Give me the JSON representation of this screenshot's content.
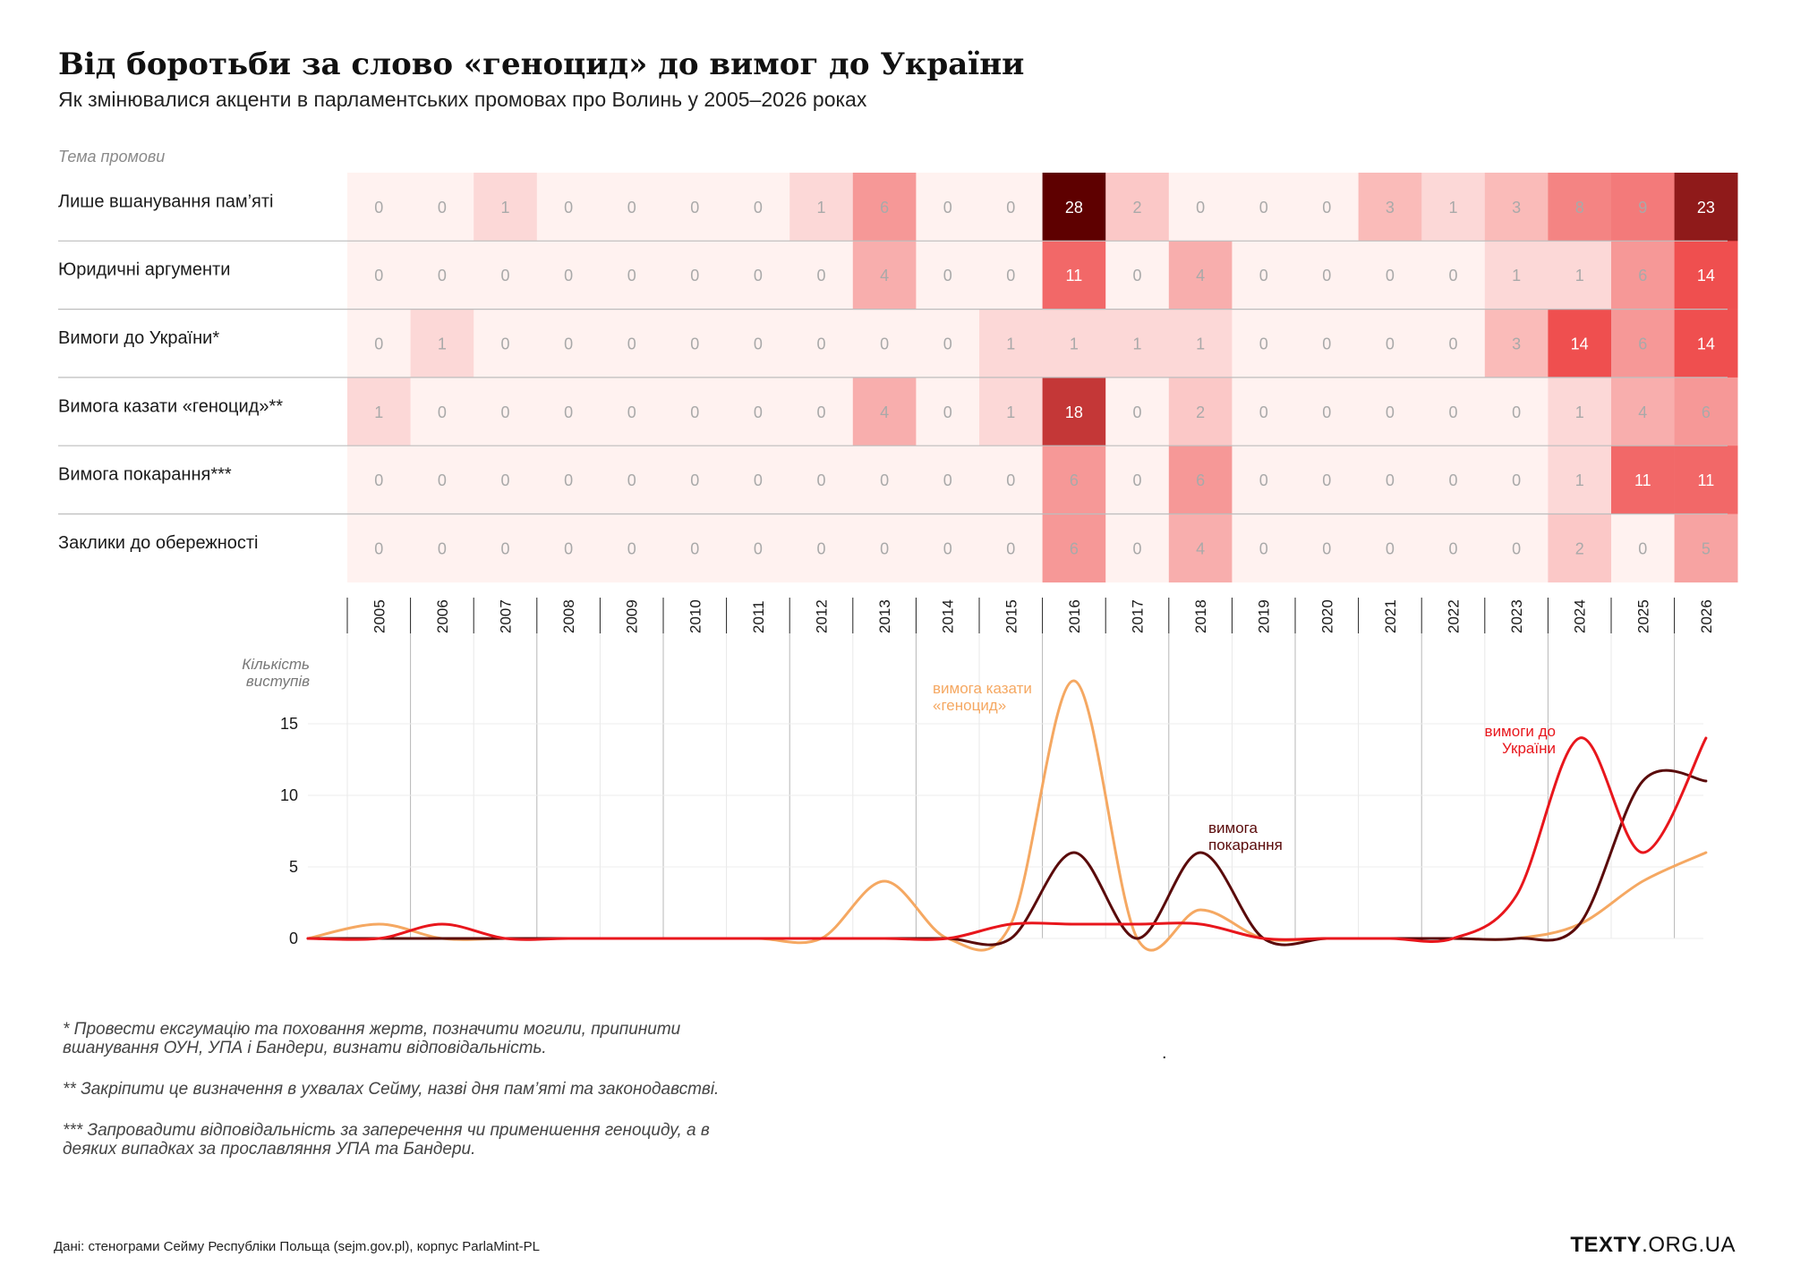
{
  "header": {
    "title": "Від боротьби за слово «геноцид» до вимог до України",
    "subtitle": "Як змінювалися акценти в парламентських промовах про Волинь у 2005–2026 роках"
  },
  "chart_data": [
    {
      "type": "heatmap",
      "row_axis_label": "Тема промови",
      "x": [
        "2005",
        "2006",
        "2007",
        "2008",
        "2009",
        "2010",
        "2011",
        "2012",
        "2013",
        "2014",
        "2015",
        "2016",
        "2017",
        "2018",
        "2019",
        "2020",
        "2021",
        "2022",
        "2023",
        "2024",
        "2025",
        "2026"
      ],
      "rows": [
        {
          "name": "Лише вшанування пам’яті",
          "values": [
            0,
            0,
            1,
            0,
            0,
            0,
            0,
            1,
            6,
            0,
            0,
            28,
            2,
            0,
            0,
            0,
            3,
            1,
            3,
            8,
            9,
            23
          ]
        },
        {
          "name": "Юридичні аргументи",
          "values": [
            0,
            0,
            0,
            0,
            0,
            0,
            0,
            0,
            4,
            0,
            0,
            11,
            0,
            4,
            0,
            0,
            0,
            0,
            1,
            1,
            6,
            14
          ]
        },
        {
          "name": "Вимоги до України*",
          "values": [
            0,
            1,
            0,
            0,
            0,
            0,
            0,
            0,
            0,
            0,
            1,
            1,
            1,
            1,
            0,
            0,
            0,
            0,
            3,
            14,
            6,
            14
          ]
        },
        {
          "name": "Вимога казати «геноцид»**",
          "values": [
            1,
            0,
            0,
            0,
            0,
            0,
            0,
            0,
            4,
            0,
            1,
            18,
            0,
            2,
            0,
            0,
            0,
            0,
            0,
            1,
            4,
            6
          ]
        },
        {
          "name": "Вимога покарання***",
          "values": [
            0,
            0,
            0,
            0,
            0,
            0,
            0,
            0,
            0,
            0,
            0,
            6,
            0,
            6,
            0,
            0,
            0,
            0,
            0,
            1,
            11,
            11
          ]
        },
        {
          "name": "Заклики до обережності",
          "values": [
            0,
            0,
            0,
            0,
            0,
            0,
            0,
            0,
            0,
            0,
            0,
            6,
            0,
            4,
            0,
            0,
            0,
            0,
            0,
            2,
            0,
            5
          ]
        }
      ],
      "color_scale": [
        "#fff2f0",
        "#ef4e4e",
        "#5e0000"
      ]
    },
    {
      "type": "line",
      "ylabel": "Кількість виступів",
      "ylim": [
        0,
        18
      ],
      "yticks": [
        0,
        5,
        10,
        15
      ],
      "grid": true,
      "x": [
        "2005",
        "2006",
        "2007",
        "2008",
        "2009",
        "2010",
        "2011",
        "2012",
        "2013",
        "2014",
        "2015",
        "2016",
        "2017",
        "2018",
        "2019",
        "2020",
        "2021",
        "2022",
        "2023",
        "2024",
        "2025",
        "2026"
      ],
      "series": [
        {
          "name": "вимога казати «геноцид»",
          "color": "#f5a862",
          "values": [
            1,
            0,
            0,
            0,
            0,
            0,
            0,
            0,
            4,
            0,
            1,
            18,
            0,
            2,
            0,
            0,
            0,
            0,
            0,
            1,
            4,
            6
          ]
        },
        {
          "name": "вимога покарання",
          "color": "#5a0b0b",
          "values": [
            0,
            0,
            0,
            0,
            0,
            0,
            0,
            0,
            0,
            0,
            0,
            6,
            0,
            6,
            0,
            0,
            0,
            0,
            0,
            1,
            11,
            11
          ]
        },
        {
          "name": "вимоги до України",
          "color": "#e8161c",
          "values": [
            0,
            1,
            0,
            0,
            0,
            0,
            0,
            0,
            0,
            0,
            1,
            1,
            1,
            1,
            0,
            0,
            0,
            0,
            3,
            14,
            6,
            14
          ]
        }
      ]
    }
  ],
  "notes": [
    "* Провести ексгумацію та поховання жертв, позначити могили, припинити\nвшанування ОУН, УПА і Бандери, визнати відповідальність.",
    "** Закріпити це визначення в ухвалах Сейму, назві дня пам’яті та законодавстві.",
    "*** Запровадити відповідальність за заперечення чи применшення геноциду, а в\nдеяких випадках за прославляння УПА та Бандери."
  ],
  "stray_dot": ".",
  "footer": {
    "source": "Дані: стенограми Сейму Республіки Польща (sejm.gov.pl), корпус ParlaMint-PL",
    "brand_bold": "TEXTY",
    "brand_rest": ".ORG.UA"
  }
}
